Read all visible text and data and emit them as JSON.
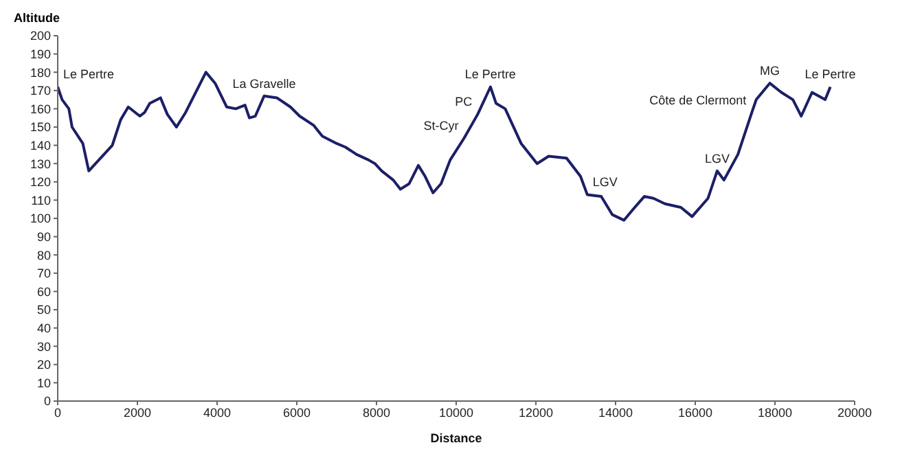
{
  "chart_data": {
    "type": "line",
    "xlabel": "Distance",
    "ylabel": "Altitude",
    "x": [
      0,
      110,
      280,
      360,
      630,
      780,
      1370,
      1580,
      1770,
      2060,
      2180,
      2310,
      2580,
      2750,
      2980,
      3210,
      3720,
      3950,
      4240,
      4470,
      4700,
      4810,
      4960,
      5180,
      5500,
      5840,
      6070,
      6420,
      6640,
      7000,
      7220,
      7500,
      7800,
      7960,
      8130,
      8420,
      8600,
      8820,
      9050,
      9220,
      9420,
      9620,
      9850,
      10200,
      10540,
      10860,
      11000,
      11230,
      11630,
      12030,
      12320,
      12770,
      13120,
      13290,
      13640,
      13920,
      14210,
      14440,
      14720,
      14950,
      15240,
      15640,
      15920,
      16320,
      16550,
      16720,
      17070,
      17420,
      17530,
      17870,
      18160,
      18450,
      18660,
      18930,
      19260,
      19390
    ],
    "series": [
      {
        "color": "#1c1f66",
        "values": [
          172,
          165,
          160,
          150,
          141,
          126,
          140,
          154,
          161,
          156,
          158,
          163,
          166,
          157,
          150,
          158,
          180,
          174,
          161,
          160,
          162,
          155,
          156,
          167,
          166,
          161,
          156,
          151,
          145,
          141,
          139,
          135,
          132,
          130,
          126,
          121,
          116,
          119,
          129,
          123,
          114,
          119,
          132,
          144,
          157,
          172,
          163,
          160,
          141,
          130,
          134,
          133,
          123,
          113,
          112,
          102,
          99,
          105,
          112,
          111,
          108,
          106,
          101,
          111,
          126,
          121,
          135,
          158,
          165,
          174,
          169,
          165,
          156,
          169,
          165,
          172
        ]
      }
    ],
    "xlim": [
      0,
      20000
    ],
    "xticks": [
      0,
      2000,
      4000,
      6000,
      8000,
      10000,
      12000,
      14000,
      16000,
      18000,
      20000
    ],
    "ylim": [
      0,
      200
    ],
    "yticks": [
      0,
      10,
      20,
      30,
      40,
      50,
      60,
      70,
      80,
      90,
      100,
      110,
      120,
      130,
      140,
      150,
      160,
      170,
      180,
      190,
      200
    ],
    "grid": false,
    "legend": false,
    "marker": "none",
    "line_style": "solid",
    "annotations": [
      {
        "text": "Le Pertre",
        "x": 0,
        "y": 172
      },
      {
        "text": "La Gravelle",
        "x": 5180,
        "y": 167
      },
      {
        "text": "PC",
        "x": 10540,
        "y": 157
      },
      {
        "text": "St-Cyr",
        "x": 10200,
        "y": 144
      },
      {
        "text": "Le Pertre",
        "x": 10860,
        "y": 172
      },
      {
        "text": "LGV",
        "x": 13290,
        "y": 113
      },
      {
        "text": "LGV",
        "x": 16550,
        "y": 126
      },
      {
        "text": "MG",
        "x": 17870,
        "y": 174
      },
      {
        "text": "Côte de Clermont",
        "x": 17420,
        "y": 158
      },
      {
        "text": "Le Pertre",
        "x": 19390,
        "y": 172
      }
    ]
  }
}
